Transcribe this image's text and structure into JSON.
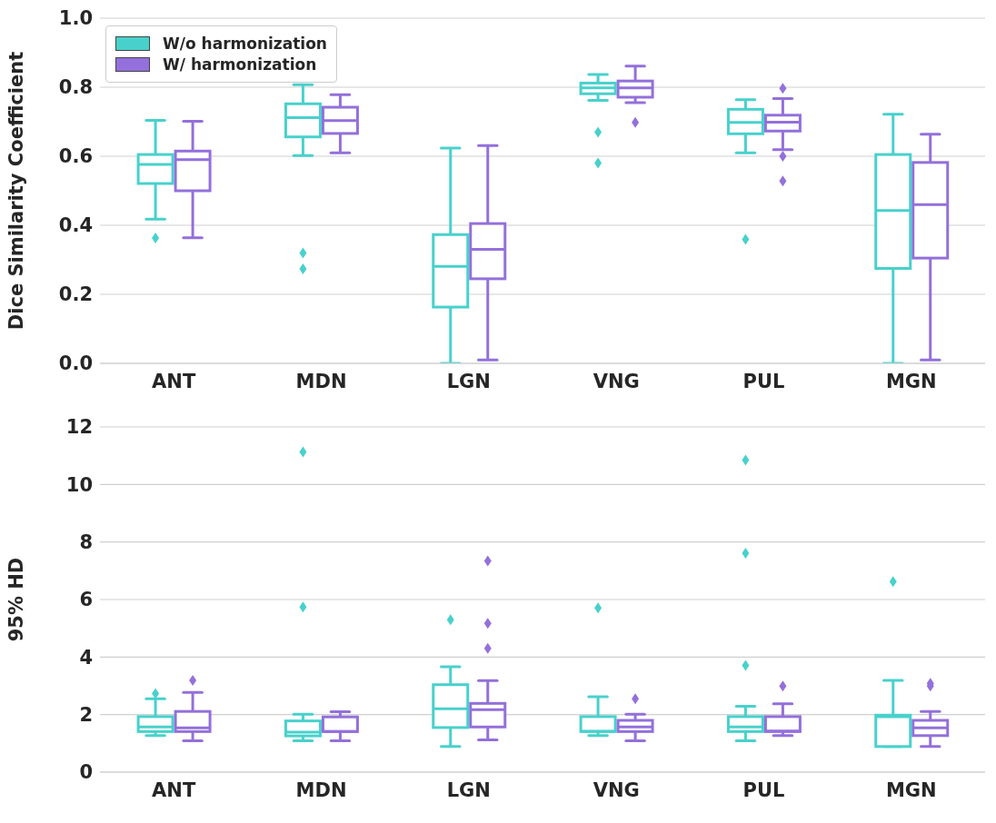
{
  "chart_data": [
    {
      "type": "box",
      "ylabel": "Dice Similarity Coefficient",
      "categories": [
        "ANT",
        "MDN",
        "LGN",
        "VNG",
        "PUL",
        "MGN"
      ],
      "ylim": [
        0,
        1
      ],
      "yticks": [
        {
          "value": 0,
          "label": "0.0"
        },
        {
          "value": 0.2,
          "label": "0.2"
        },
        {
          "value": 0.4,
          "label": "0.4"
        },
        {
          "value": 0.6,
          "label": "0.6"
        },
        {
          "value": 0.8,
          "label": "0.8"
        },
        {
          "value": 1,
          "label": "1.0"
        }
      ],
      "grid": "y",
      "legend": "top left",
      "series": [
        {
          "name": "W/o harmonization",
          "color": "#48d1cc",
          "boxes": [
            {
              "low": 0.418,
              "q1": 0.521,
              "median": 0.576,
              "q3": 0.605,
              "high": 0.704,
              "outliers": [
                0.363
              ]
            },
            {
              "low": 0.602,
              "q1": 0.656,
              "median": 0.712,
              "q3": 0.752,
              "high": 0.807,
              "outliers": [
                0.32,
                0.274
              ]
            },
            {
              "low": 0.0,
              "q1": 0.163,
              "median": 0.281,
              "q3": 0.373,
              "high": 0.624
            },
            {
              "low": 0.762,
              "q1": 0.781,
              "median": 0.798,
              "q3": 0.812,
              "high": 0.837,
              "outliers": [
                0.67,
                0.58
              ]
            },
            {
              "low": 0.61,
              "q1": 0.665,
              "median": 0.698,
              "q3": 0.736,
              "high": 0.764,
              "outliers": [
                0.359
              ]
            },
            {
              "low": 0.0,
              "q1": 0.275,
              "median": 0.443,
              "q3": 0.605,
              "high": 0.722
            }
          ]
        },
        {
          "name": "W/ harmonization",
          "color": "#9370db",
          "boxes": [
            {
              "low": 0.364,
              "q1": 0.5,
              "median": 0.59,
              "q3": 0.615,
              "high": 0.701
            },
            {
              "low": 0.61,
              "q1": 0.666,
              "median": 0.703,
              "q3": 0.742,
              "high": 0.778
            },
            {
              "low": 0.01,
              "q1": 0.245,
              "median": 0.33,
              "q3": 0.405,
              "high": 0.631
            },
            {
              "low": 0.755,
              "q1": 0.771,
              "median": 0.798,
              "q3": 0.818,
              "high": 0.861,
              "outliers": [
                0.698
              ]
            },
            {
              "low": 0.619,
              "q1": 0.673,
              "median": 0.699,
              "q3": 0.719,
              "high": 0.767,
              "outliers": [
                0.797,
                0.6,
                0.528
              ]
            },
            {
              "low": 0.01,
              "q1": 0.305,
              "median": 0.46,
              "q3": 0.582,
              "high": 0.664
            }
          ]
        }
      ]
    },
    {
      "type": "box",
      "ylabel": "95% HD",
      "categories": [
        "ANT",
        "MDN",
        "LGN",
        "VNG",
        "PUL",
        "MGN"
      ],
      "ylim": [
        0,
        12
      ],
      "yticks": [
        0,
        2,
        4,
        6,
        8,
        10,
        12
      ],
      "grid": "y",
      "series": [
        {
          "color": "#48d1cc",
          "boxes": [
            {
              "low": 1.27,
              "q1": 1.41,
              "median": 1.57,
              "q3": 1.93,
              "high": 2.55,
              "outliers": [
                2.73
              ]
            },
            {
              "low": 1.09,
              "q1": 1.26,
              "median": 1.39,
              "q3": 1.78,
              "high": 2.01,
              "outliers": [
                11.13,
                5.74
              ]
            },
            {
              "low": 0.89,
              "q1": 1.55,
              "median": 2.2,
              "q3": 3.04,
              "high": 3.66,
              "outliers": [
                5.3
              ]
            },
            {
              "low": 1.27,
              "q1": 1.41,
              "median": 1.42,
              "q3": 1.93,
              "high": 2.62,
              "outliers": [
                5.71
              ]
            },
            {
              "low": 1.09,
              "q1": 1.41,
              "median": 1.57,
              "q3": 1.93,
              "high": 2.29,
              "outliers": [
                10.85,
                7.61,
                3.71
              ]
            },
            {
              "low": 0.89,
              "q1": 0.89,
              "median": 1.93,
              "q3": 1.98,
              "high": 3.19,
              "outliers": [
                6.62
              ]
            }
          ]
        },
        {
          "color": "#9370db",
          "boxes": [
            {
              "low": 1.09,
              "q1": 1.41,
              "median": 1.54,
              "q3": 2.11,
              "high": 2.77,
              "outliers": [
                3.19
              ]
            },
            {
              "low": 1.09,
              "q1": 1.41,
              "median": 1.41,
              "q3": 1.92,
              "high": 2.1
            },
            {
              "low": 1.12,
              "q1": 1.57,
              "median": 2.17,
              "q3": 2.39,
              "high": 3.18,
              "outliers": [
                7.34,
                5.17,
                4.3
              ]
            },
            {
              "low": 1.09,
              "q1": 1.41,
              "median": 1.57,
              "q3": 1.8,
              "high": 2.01,
              "outliers": [
                2.55
              ]
            },
            {
              "low": 1.27,
              "q1": 1.41,
              "median": 1.43,
              "q3": 1.93,
              "high": 2.38,
              "outliers": [
                2.99
              ]
            },
            {
              "low": 0.89,
              "q1": 1.27,
              "median": 1.54,
              "q3": 1.8,
              "high": 2.11,
              "outliers": [
                3.09,
                2.99
              ]
            }
          ]
        }
      ]
    }
  ]
}
